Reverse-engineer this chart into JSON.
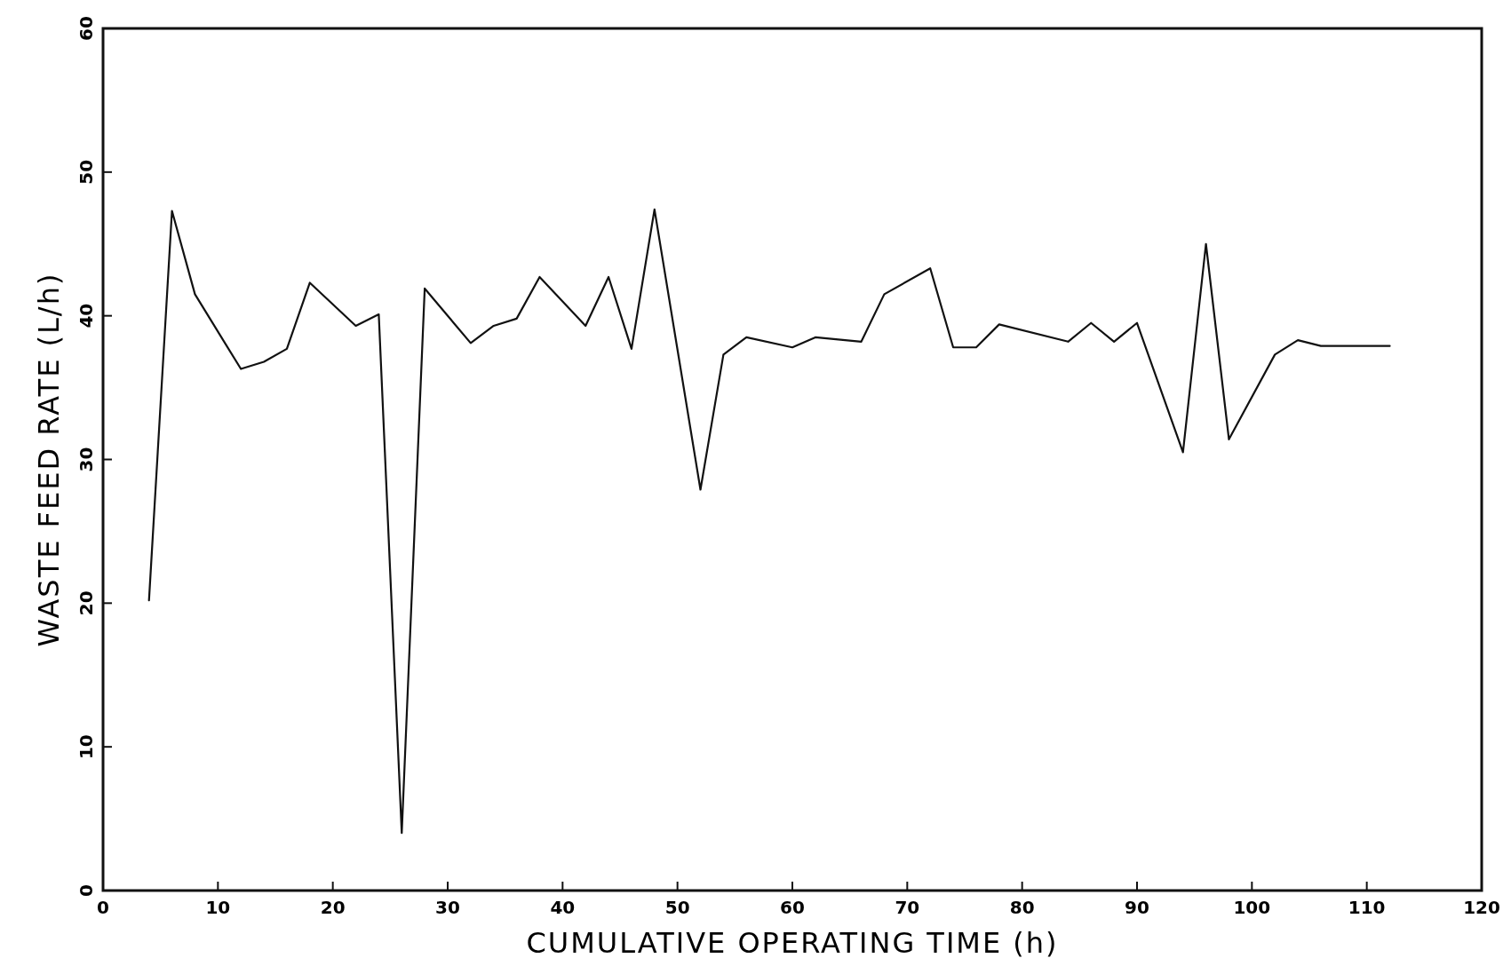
{
  "chart_data": {
    "type": "line",
    "xlabel": "CUMULATIVE OPERATING TIME (h)",
    "ylabel": "WASTE FEED RATE (L/h)",
    "x": [
      4,
      6,
      8,
      12,
      14,
      16,
      18,
      22,
      24,
      26,
      28,
      32,
      34,
      36,
      38,
      42,
      44,
      46,
      48,
      52,
      54,
      56,
      60,
      62,
      66,
      68,
      72,
      74,
      76,
      78,
      84,
      86,
      88,
      90,
      94,
      96,
      98,
      102,
      104,
      106,
      112
    ],
    "series": [
      {
        "color": "#111111",
        "values": [
          20.2,
          47.3,
          41.5,
          36.3,
          36.8,
          37.7,
          42.3,
          39.3,
          40.1,
          4.0,
          41.9,
          38.1,
          39.3,
          39.8,
          42.7,
          39.3,
          42.7,
          37.7,
          47.4,
          27.9,
          37.3,
          38.5,
          37.8,
          38.5,
          38.2,
          41.5,
          43.3,
          37.8,
          37.8,
          39.4,
          38.2,
          39.5,
          38.2,
          39.5,
          30.5,
          45.0,
          31.4,
          37.3,
          38.3,
          37.9,
          37.9
        ]
      }
    ],
    "xlim": [
      0,
      120
    ],
    "ylim": [
      0,
      60
    ],
    "xticks": [
      0,
      10,
      20,
      30,
      40,
      50,
      60,
      70,
      80,
      90,
      100,
      110,
      120
    ],
    "yticks": [
      0,
      10,
      20,
      30,
      40,
      50,
      60
    ],
    "grid": false,
    "marker": "none",
    "line_style": "solid"
  }
}
